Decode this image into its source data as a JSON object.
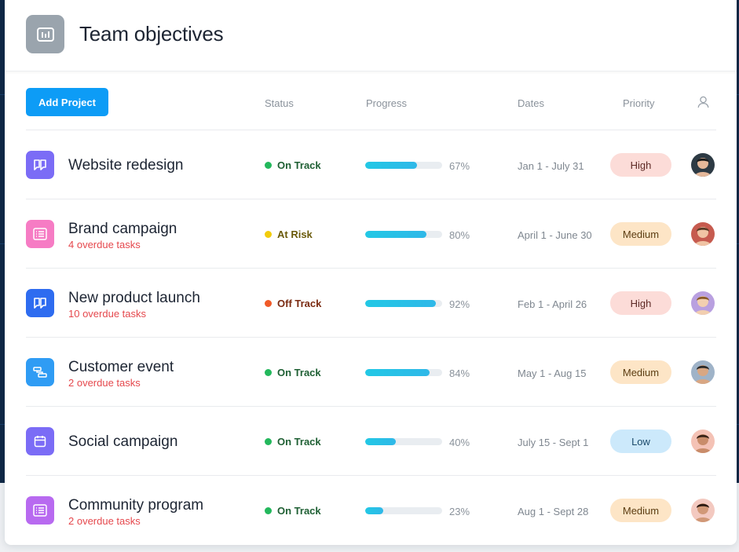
{
  "header": {
    "title": "Team objectives",
    "icon": "bar-chart-icon"
  },
  "toolbar": {
    "add_label": "Add Project"
  },
  "columns": {
    "status": "Status",
    "progress": "Progress",
    "dates": "Dates",
    "priority": "Priority",
    "assignee_icon": "user-icon"
  },
  "colors": {
    "accent": "#0d9cf6",
    "on_track": "#23b85c",
    "at_risk": "#f2cc0c",
    "off_track": "#f05a28",
    "overdue": "#e5484d"
  },
  "projects": [
    {
      "name": "Website redesign",
      "overdue": "",
      "icon": "board-icon",
      "icon_color": "#7b6cf6",
      "status": "On Track",
      "status_color": "#23b85c",
      "status_text_color": "#1e5f33",
      "progress": 67,
      "progress_label": "67%",
      "dates": "Jan 1 - July 31",
      "priority": "High",
      "priority_level": "high"
    },
    {
      "name": "Brand campaign",
      "overdue": "4 overdue tasks",
      "icon": "list-icon",
      "icon_color": "#f67cc4",
      "status": "At Risk",
      "status_color": "#f2cc0c",
      "status_text_color": "#6a5a0a",
      "progress": 80,
      "progress_label": "80%",
      "dates": "April 1 - June 30",
      "priority": "Medium",
      "priority_level": "medium"
    },
    {
      "name": "New product launch",
      "overdue": "10 overdue tasks",
      "icon": "board-icon",
      "icon_color": "#2e6cf0",
      "status": "Off Track",
      "status_color": "#f05a28",
      "status_text_color": "#7a2b12",
      "progress": 92,
      "progress_label": "92%",
      "dates": "Feb 1 - April 26",
      "priority": "High",
      "priority_level": "high"
    },
    {
      "name": "Customer event",
      "overdue": "2 overdue tasks",
      "icon": "timeline-icon",
      "icon_color": "#2f9cf4",
      "status": "On Track",
      "status_color": "#23b85c",
      "status_text_color": "#1e5f33",
      "progress": 84,
      "progress_label": "84%",
      "dates": "May 1 - Aug 15",
      "priority": "Medium",
      "priority_level": "medium"
    },
    {
      "name": "Social campaign",
      "overdue": "",
      "icon": "calendar-icon",
      "icon_color": "#7b6cf6",
      "status": "On Track",
      "status_color": "#23b85c",
      "status_text_color": "#1e5f33",
      "progress": 40,
      "progress_label": "40%",
      "dates": "July 15 - Sept 1",
      "priority": "Low",
      "priority_level": "low"
    },
    {
      "name": "Community program",
      "overdue": "2 overdue tasks",
      "icon": "list-icon",
      "icon_color": "#b86af0",
      "status": "On Track",
      "status_color": "#23b85c",
      "status_text_color": "#1e5f33",
      "progress": 23,
      "progress_label": "23%",
      "dates": "Aug 1 - Sept 28",
      "priority": "Medium",
      "priority_level": "medium"
    }
  ]
}
